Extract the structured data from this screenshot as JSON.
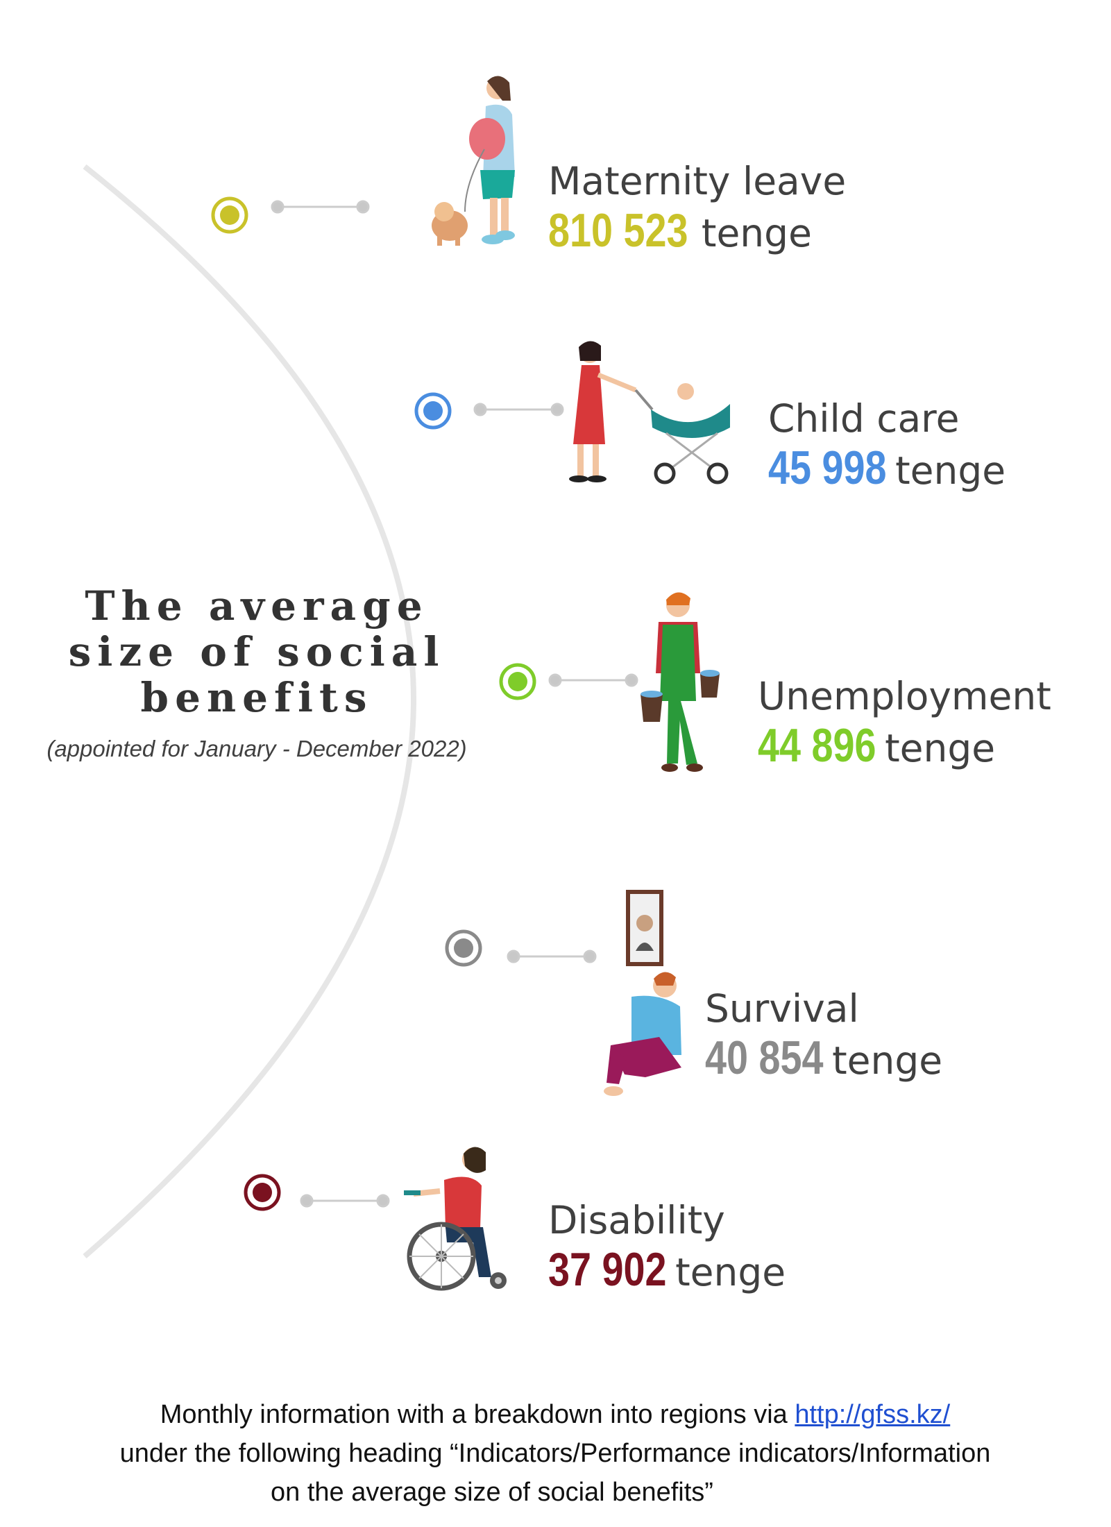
{
  "title": {
    "line1": "The average",
    "line2": "size of social",
    "line3": "benefits"
  },
  "subtitle": "(appointed for January - December 2022)",
  "benefits": [
    {
      "label": "Maternity leave",
      "amount": "810 523",
      "unit": "tenge",
      "color": "#c9c22a",
      "icon": "pregnant-woman-with-dog-icon"
    },
    {
      "label": "Child care",
      "amount": "45 998",
      "unit": "tenge",
      "color": "#4a8de0",
      "icon": "woman-with-stroller-icon"
    },
    {
      "label": "Unemployment",
      "amount": "44 896",
      "unit": "tenge",
      "color": "#7fcc2a",
      "icon": "worker-carrying-buckets-icon"
    },
    {
      "label": "Survival",
      "amount": "40 854",
      "unit": "tenge",
      "color": "#8a8a8a",
      "icon": "grieving-person-with-portrait-icon"
    },
    {
      "label": "Disability",
      "amount": "37 902",
      "unit": "tenge",
      "color": "#7a1220",
      "icon": "man-in-wheelchair-icon"
    }
  ],
  "footer": {
    "line1_prefix": "Monthly information with a breakdown into regions via ",
    "link_text": "http://gfss.kz/",
    "line2": "under the following heading “Indicators/Performance indicators/Information",
    "line3": "on the average size of  social benefits”"
  }
}
